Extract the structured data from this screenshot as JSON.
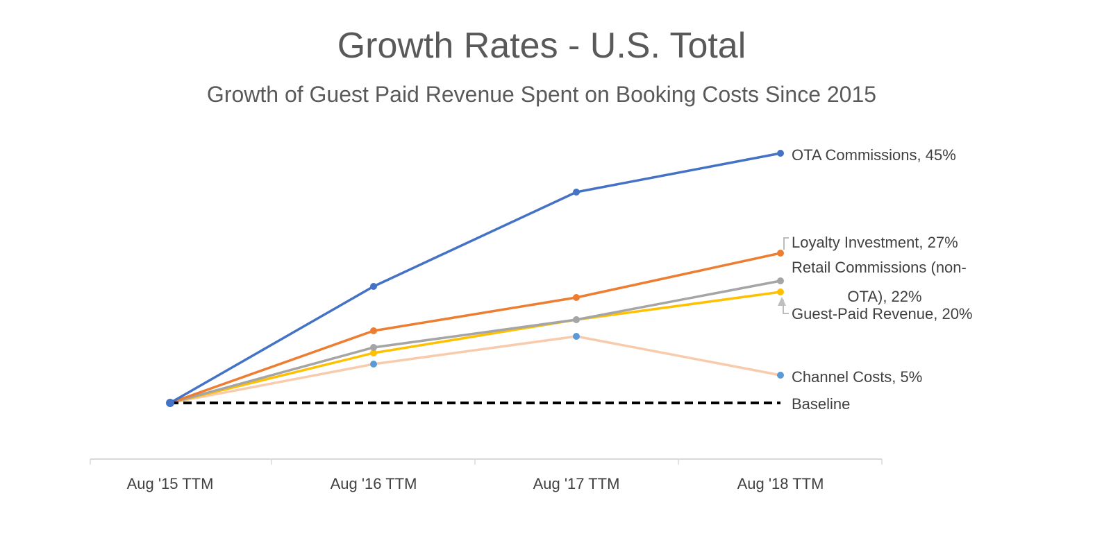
{
  "chart_data": {
    "type": "line",
    "title": "Growth Rates - U.S. Total",
    "subtitle": "Growth of Guest Paid Revenue Spent on Booking Costs Since 2015",
    "xlabel": "",
    "ylabel": "",
    "categories": [
      "Aug '15 TTM",
      "Aug '16 TTM",
      "Aug '17 TTM",
      "Aug '18 TTM"
    ],
    "ylim": [
      -10,
      48
    ],
    "grid": false,
    "legend": "none (data labels at line ends, right)",
    "series": [
      {
        "name": "OTA Commissions",
        "label": "OTA Commissions, 45%",
        "color": "#4472C4",
        "marker_color": "#4472C4",
        "values": [
          0,
          21,
          38,
          45
        ]
      },
      {
        "name": "Loyalty Investment",
        "label": "Loyalty Investment, 27%",
        "color": "#ED7D31",
        "marker_color": "#ED7D31",
        "values": [
          0,
          13,
          19,
          27
        ]
      },
      {
        "name": "Retail Commissions (non-OTA)",
        "label_lines": [
          "Retail Commissions (non-",
          "OTA), 22%"
        ],
        "color": "#A5A5A5",
        "marker_color": "#A5A5A5",
        "values": [
          0,
          10,
          15,
          22
        ]
      },
      {
        "name": "Guest-Paid Revenue",
        "label": "Guest-Paid Revenue, 20%",
        "color": "#FFC000",
        "marker_color": "#FFC000",
        "values": [
          0,
          9,
          15,
          20
        ]
      },
      {
        "name": "Channel Costs",
        "label": "Channel Costs, 5%",
        "color": "#F8CBAD",
        "marker_color": "#5B9BD5",
        "values": [
          0,
          7,
          12,
          5
        ]
      },
      {
        "name": "Baseline",
        "label": "Baseline",
        "color": "#000000",
        "dashed": true,
        "values": [
          0,
          0,
          0,
          0
        ]
      }
    ]
  }
}
